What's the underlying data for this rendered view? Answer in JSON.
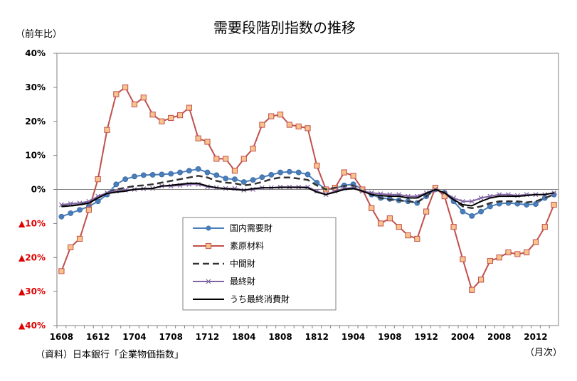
{
  "chart_data": {
    "type": "line",
    "title": "需要段階別指数の推移",
    "ylabel": "（前年比）",
    "xlabel": "（月次）",
    "source": "（資料）日本銀行「企業物価指数」",
    "ylim": [
      -40,
      40
    ],
    "y_ticks": [
      {
        "v": 40,
        "label": "40%"
      },
      {
        "v": 30,
        "label": "30%"
      },
      {
        "v": 20,
        "label": "20%"
      },
      {
        "v": 10,
        "label": "10%"
      },
      {
        "v": 0,
        "label": "0%"
      },
      {
        "v": -10,
        "label": "▲10%"
      },
      {
        "v": -20,
        "label": "▲20%"
      },
      {
        "v": -30,
        "label": "▲30%"
      },
      {
        "v": -40,
        "label": "▲40%"
      }
    ],
    "x_ticks": [
      "1608",
      "1612",
      "1704",
      "1708",
      "1712",
      "1804",
      "1808",
      "1812",
      "1904",
      "1908",
      "1912",
      "2004",
      "2008",
      "2012"
    ],
    "x": [
      "1608",
      "1609",
      "1610",
      "1611",
      "1612",
      "1701",
      "1702",
      "1703",
      "1704",
      "1705",
      "1706",
      "1707",
      "1708",
      "1709",
      "1710",
      "1711",
      "1712",
      "1801",
      "1802",
      "1803",
      "1804",
      "1805",
      "1806",
      "1807",
      "1808",
      "1809",
      "1810",
      "1811",
      "1812",
      "1901",
      "1902",
      "1903",
      "1904",
      "1905",
      "1906",
      "1907",
      "1908",
      "1909",
      "1910",
      "1911",
      "1912",
      "2001",
      "2002",
      "2003",
      "2004",
      "2005",
      "2006",
      "2007",
      "2008",
      "2009",
      "2010",
      "2011",
      "2012",
      "2101",
      "2102"
    ],
    "series": [
      {
        "name": "国内需要財",
        "color": "#4a7ebb",
        "marker": "circle",
        "dash": "",
        "values": [
          -8,
          -7,
          -6,
          -5,
          -3.5,
          -1.5,
          1.5,
          3,
          3.8,
          4.2,
          4.3,
          4.4,
          4.6,
          5,
          5.5,
          6,
          5,
          4.2,
          3.2,
          3,
          2.2,
          2.8,
          3.6,
          4.3,
          5,
          5.2,
          5,
          4.4,
          2,
          0,
          0.3,
          1.2,
          1.5,
          0,
          -1.5,
          -2.5,
          -2.8,
          -3.2,
          -3.5,
          -4,
          -2,
          0,
          -1,
          -3.5,
          -6.5,
          -7.8,
          -6.5,
          -5,
          -4.2,
          -4,
          -4.2,
          -4.5,
          -4.3,
          -2.5,
          -1.5
        ]
      },
      {
        "name": "素原材料",
        "color": "#c0504d",
        "marker": "square",
        "dash": "",
        "values": [
          -24,
          -17,
          -14.5,
          -6,
          3,
          17.5,
          28,
          30,
          25,
          27,
          22,
          20,
          21,
          21.8,
          24,
          15,
          14,
          9,
          9,
          5.5,
          9,
          12,
          19,
          21.5,
          22,
          19,
          18.5,
          18,
          7,
          0,
          0.5,
          5,
          4,
          0,
          -5.5,
          -10,
          -8.5,
          -11,
          -13.5,
          -14.5,
          -6.5,
          0.5,
          -2,
          -11,
          -20.5,
          -29.5,
          -26.5,
          -21,
          -20,
          -18.5,
          -19,
          -18.5,
          -15.5,
          -11,
          -4.5
        ]
      },
      {
        "name": "中間財",
        "color": "#333333",
        "marker": "",
        "dash": "9,5",
        "values": [
          -5,
          -4.8,
          -4.5,
          -4,
          -2.5,
          -1,
          0,
          0.5,
          1,
          1.2,
          1.5,
          2,
          2.5,
          3,
          3.5,
          4,
          3.5,
          2.5,
          2,
          1.8,
          1.2,
          1.5,
          2.2,
          3,
          3.5,
          3.5,
          3.2,
          2.8,
          1.2,
          0,
          0.5,
          1,
          1.2,
          -0.5,
          -1.5,
          -2.5,
          -3,
          -3.2,
          -3.5,
          -3.8,
          -2,
          0,
          -0.8,
          -3,
          -5,
          -5.5,
          -5,
          -4,
          -3.5,
          -3.5,
          -3.5,
          -3.8,
          -3.5,
          -2.5,
          -1.5
        ]
      },
      {
        "name": "最終財",
        "color": "#8064a2",
        "marker": "x",
        "dash": "",
        "values": [
          -4.5,
          -4.2,
          -4,
          -3.5,
          -2,
          -1,
          -0.5,
          -0.2,
          0,
          0.2,
          0.3,
          1,
          1,
          1.2,
          1.5,
          1.5,
          0.8,
          0.5,
          0.3,
          0.3,
          -0.2,
          0,
          0.5,
          0.5,
          0.7,
          0.7,
          0.7,
          0.7,
          -0.5,
          -1.5,
          -0.5,
          0.3,
          0.5,
          -0.5,
          -1,
          -1.3,
          -1.5,
          -1.5,
          -2,
          -2,
          -1,
          0,
          -1,
          -2.5,
          -3.5,
          -3.5,
          -2.5,
          -2,
          -1.5,
          -1.5,
          -1.8,
          -1.5,
          -1.5,
          -1.5,
          -1
        ]
      },
      {
        "name": "うち最終消費財",
        "color": "#000000",
        "marker": "",
        "dash": "",
        "values": [
          -5,
          -4.8,
          -4.5,
          -4,
          -2.5,
          -1.2,
          -0.8,
          -0.5,
          0,
          0.2,
          0.3,
          1,
          1.2,
          1.5,
          1.8,
          1.8,
          1,
          0.5,
          0.2,
          0,
          -0.2,
          0.2,
          0.5,
          0.5,
          0.6,
          0.6,
          0.6,
          0.5,
          -0.8,
          -1.5,
          -0.8,
          0,
          0.3,
          -0.5,
          -1.5,
          -1.8,
          -2,
          -2,
          -2.5,
          -2.5,
          -1.2,
          0,
          -1,
          -3,
          -4.5,
          -4.8,
          -3.5,
          -2.5,
          -2,
          -2,
          -2,
          -1.8,
          -1.5,
          -1.5,
          -1
        ]
      }
    ],
    "legend": {
      "placement": "center-left"
    },
    "grid": false
  }
}
